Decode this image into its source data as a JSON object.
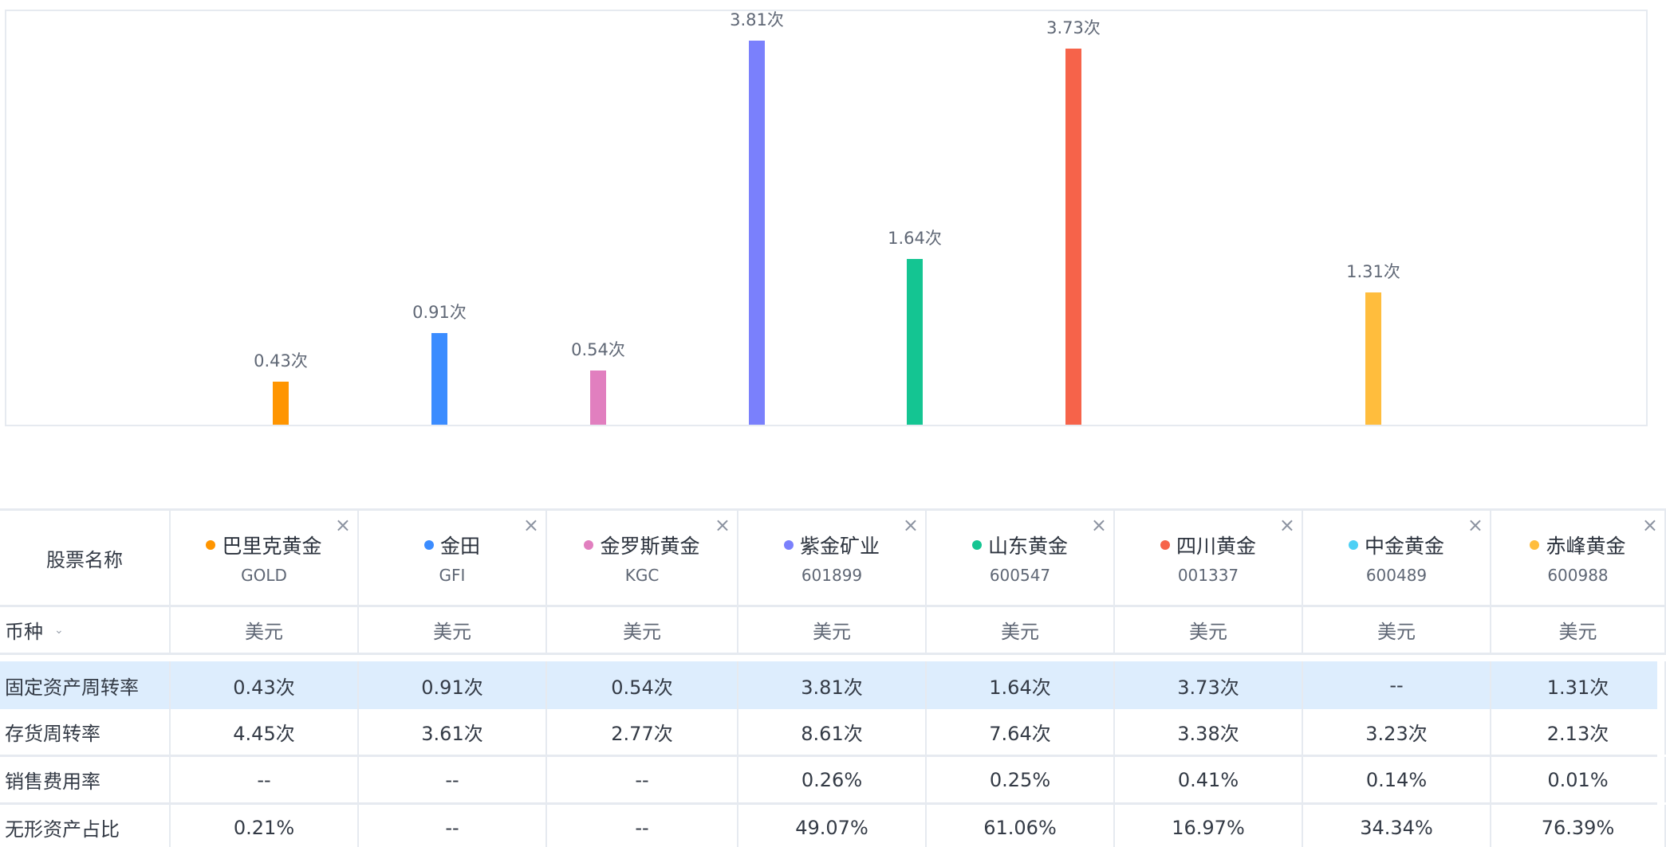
{
  "chart_data": {
    "type": "bar",
    "title": "",
    "xlabel": "",
    "ylabel": "",
    "metric": "固定资产周转率",
    "unit": "次",
    "categories": [
      "巴里克黄金",
      "金田",
      "金罗斯黄金",
      "紫金矿业",
      "山东黄金",
      "四川黄金",
      "中金黄金",
      "赤峰黄金"
    ],
    "values": [
      0.43,
      0.91,
      0.54,
      3.81,
      1.64,
      3.73,
      null,
      1.31
    ],
    "labels": [
      "0.43次",
      "0.91次",
      "0.54次",
      "3.81次",
      "1.64次",
      "3.73次",
      "",
      "1.31次"
    ],
    "colors": [
      "#ff9500",
      "#3b8cff",
      "#e17fbf",
      "#7a80fc",
      "#14c592",
      "#f6634a",
      "#4dd0f5",
      "#ffbd3d"
    ],
    "ylim": [
      0,
      4.0
    ],
    "grid": false,
    "legend": "none"
  },
  "table": {
    "header_label": "股票名称",
    "currency_label": "币种",
    "close_icon": "×",
    "chevron_icon": "⌄",
    "stocks": [
      {
        "name": "巴里克黄金",
        "code": "GOLD",
        "color": "#ff9500",
        "currency": "美元"
      },
      {
        "name": "金田",
        "code": "GFI",
        "color": "#3b8cff",
        "currency": "美元"
      },
      {
        "name": "金罗斯黄金",
        "code": "KGC",
        "color": "#e17fbf",
        "currency": "美元"
      },
      {
        "name": "紫金矿业",
        "code": "601899",
        "color": "#7a80fc",
        "currency": "美元"
      },
      {
        "name": "山东黄金",
        "code": "600547",
        "color": "#14c592",
        "currency": "美元"
      },
      {
        "name": "四川黄金",
        "code": "001337",
        "color": "#f6634a",
        "currency": "美元"
      },
      {
        "name": "中金黄金",
        "code": "600489",
        "color": "#4dd0f5",
        "currency": "美元"
      },
      {
        "name": "赤峰黄金",
        "code": "600988",
        "color": "#ffbd3d",
        "currency": "美元"
      }
    ],
    "rows": [
      {
        "label": "固定资产周转率",
        "highlighted": true,
        "values": [
          "0.43次",
          "0.91次",
          "0.54次",
          "3.81次",
          "1.64次",
          "3.73次",
          "--",
          "1.31次"
        ]
      },
      {
        "label": "存货周转率",
        "highlighted": false,
        "values": [
          "4.45次",
          "3.61次",
          "2.77次",
          "8.61次",
          "7.64次",
          "3.38次",
          "3.23次",
          "2.13次"
        ]
      },
      {
        "label": "销售费用率",
        "highlighted": false,
        "values": [
          "--",
          "--",
          "--",
          "0.26%",
          "0.25%",
          "0.41%",
          "0.14%",
          "0.01%"
        ]
      },
      {
        "label": "无形资产占比",
        "highlighted": false,
        "values": [
          "0.21%",
          "--",
          "--",
          "49.07%",
          "61.06%",
          "16.97%",
          "34.34%",
          "76.39%"
        ]
      }
    ]
  }
}
